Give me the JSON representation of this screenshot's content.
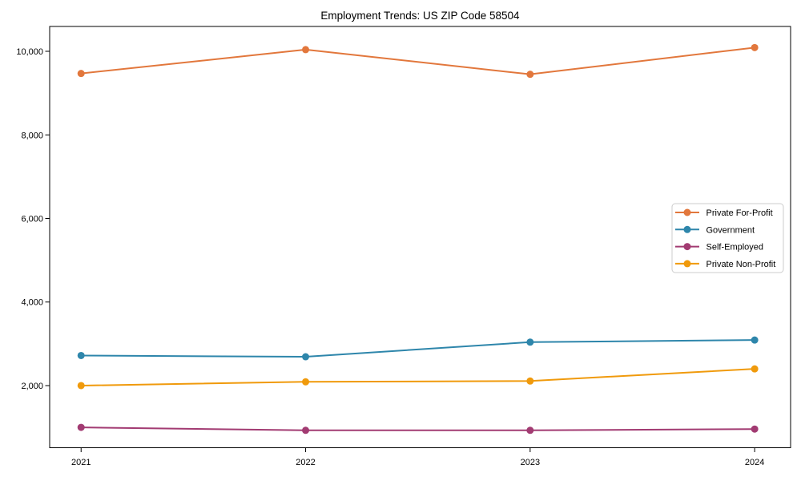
{
  "chart_data": {
    "type": "line",
    "title": "Employment Trends: US ZIP Code 58504",
    "xlabel": "",
    "ylabel": "",
    "categories": [
      "2021",
      "2022",
      "2023",
      "2024"
    ],
    "x": [
      2021,
      2022,
      2023,
      2024
    ],
    "xlim": [
      2020.86,
      2024.16
    ],
    "ylim": [
      513,
      10595
    ],
    "yticks": [
      2000,
      4000,
      6000,
      8000,
      10000
    ],
    "ytick_labels": [
      "2,000",
      "4,000",
      "6,000",
      "8,000",
      "10,000"
    ],
    "grid": false,
    "legend_position": "center right",
    "marker": "circle",
    "series": [
      {
        "name": "Private For-Profit",
        "color": "#E2773C",
        "values": [
          9470,
          10040,
          9450,
          10090
        ]
      },
      {
        "name": "Government",
        "color": "#2E86AB",
        "values": [
          2720,
          2690,
          3040,
          3090
        ]
      },
      {
        "name": "Self-Employed",
        "color": "#A23B72",
        "values": [
          1000,
          930,
          930,
          960
        ]
      },
      {
        "name": "Private Non-Profit",
        "color": "#F09A0C",
        "values": [
          2000,
          2090,
          2110,
          2400
        ]
      }
    ],
    "colors": {
      "text": "#000000",
      "frame": "#000000",
      "legend_border": "#cccccc",
      "background": "#ffffff"
    }
  }
}
